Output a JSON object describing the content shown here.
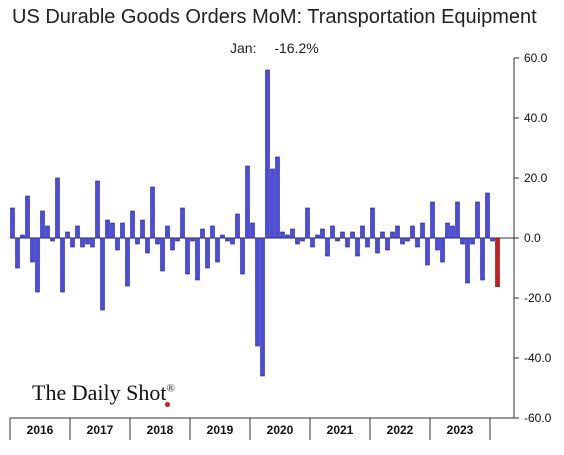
{
  "chart_data": {
    "type": "bar",
    "title": "US Durable Goods Orders MoM: Transportation Equipment",
    "latest_label": "Jan:",
    "latest_value_text": "-16.2%",
    "brand": "The Daily Shot",
    "brand_mark": "®",
    "ylim": [
      -60,
      60
    ],
    "yticks": [
      60,
      40,
      20,
      0,
      -20,
      -40,
      -60
    ],
    "ytick_labels": [
      "60.0",
      "40.0",
      "20.0",
      "0.0",
      "-20.0",
      "-40.0",
      "-60.0"
    ],
    "years": [
      "2016",
      "2017",
      "2018",
      "2019",
      "2020",
      "2021",
      "2022",
      "2023"
    ],
    "x_start": "2016-01",
    "x_end": "2024-01",
    "grid": false,
    "colors": {
      "bar": "#4b4bea",
      "bar_edge": "#1b1b7a",
      "highlight": "#d11b1b",
      "highlight_edge": "#6b0000"
    },
    "series": [
      {
        "values": [
          10,
          -10,
          1,
          14,
          -8,
          -18,
          9,
          4,
          -1,
          20,
          -18,
          2,
          -3,
          4,
          -3,
          -2,
          -3,
          19,
          -24,
          6,
          5,
          -4,
          5,
          -16,
          9,
          -2,
          6,
          -5,
          17,
          -2,
          -11,
          4,
          -4,
          -1,
          10,
          -12,
          -1,
          -14,
          3,
          -10,
          4,
          -8,
          1,
          -1,
          -2,
          8,
          -12,
          24,
          5,
          -36,
          -46,
          56,
          23,
          27,
          2,
          1,
          3,
          -2,
          -1,
          10,
          -3,
          1,
          3,
          -6,
          4,
          -1,
          2,
          -3,
          2,
          -6,
          4,
          -3,
          10,
          -5,
          2,
          -4,
          2,
          4,
          -2,
          -1,
          4,
          -3,
          5,
          -9,
          12,
          -4,
          -8,
          5,
          4,
          12,
          -2,
          -15,
          -2,
          12,
          -14,
          15,
          -1,
          -16.2
        ],
        "highlight_last": true
      }
    ]
  }
}
